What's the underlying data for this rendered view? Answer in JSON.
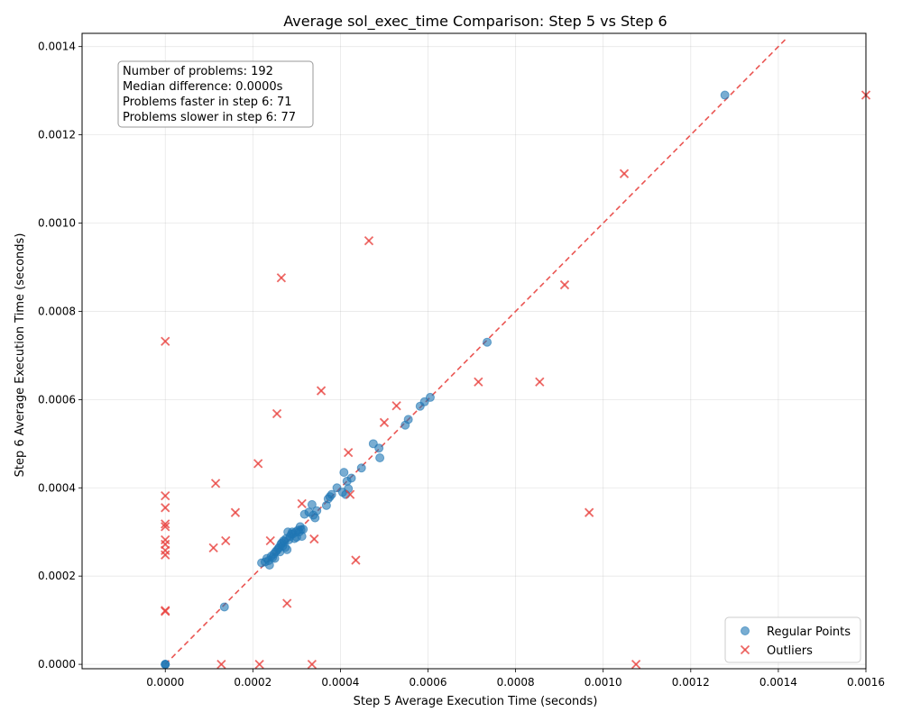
{
  "chart_data": {
    "type": "scatter",
    "title": "Average sol_exec_time Comparison: Step 5 vs Step 6",
    "xlabel": "Step 5 Average Execution Time (seconds)",
    "ylabel": "Step 6 Average Execution Time (seconds)",
    "xlim": [
      -0.00019,
      0.0016
    ],
    "ylim": [
      -1e-05,
      0.00143
    ],
    "xticks": [
      0.0,
      0.0002,
      0.0004,
      0.0006,
      0.0008,
      0.001,
      0.0012,
      0.0014,
      0.0016
    ],
    "xtick_labels": [
      "0.0000",
      "0.0002",
      "0.0004",
      "0.0006",
      "0.0008",
      "0.0010",
      "0.0012",
      "0.0014",
      "0.0016"
    ],
    "yticks": [
      0.0,
      0.0002,
      0.0004,
      0.0006,
      0.0008,
      0.001,
      0.0012,
      0.0014
    ],
    "ytick_labels": [
      "0.0000",
      "0.0002",
      "0.0004",
      "0.0006",
      "0.0008",
      "0.0010",
      "0.0012",
      "0.0014"
    ],
    "grid": true,
    "legend_position": "lower-right",
    "diagonal": {
      "x": [
        0.0,
        0.00142
      ],
      "y": [
        0.0,
        0.00142
      ],
      "color": "#e8423f",
      "style": "dashed"
    },
    "stats": [
      "Number of problems: 192",
      "Median difference: 0.0000s",
      "Problems faster in step 6: 71",
      "Problems slower in step 6: 77"
    ],
    "series": [
      {
        "name": "Regular Points",
        "marker": "circle",
        "color": "#1f77b4",
        "points": [
          [
            0.0,
            0.0
          ],
          [
            0.0,
            0.0
          ],
          [
            0.0,
            0.0
          ],
          [
            0.000135,
            0.00013
          ],
          [
            0.00022,
            0.00023
          ],
          [
            0.000228,
            0.000232
          ],
          [
            0.000232,
            0.00024
          ],
          [
            0.000236,
            0.000235
          ],
          [
            0.000238,
            0.000225
          ],
          [
            0.000242,
            0.000245
          ],
          [
            0.000245,
            0.000242
          ],
          [
            0.000248,
            0.00025
          ],
          [
            0.00025,
            0.00024
          ],
          [
            0.000252,
            0.000255
          ],
          [
            0.000255,
            0.000258
          ],
          [
            0.000258,
            0.000262
          ],
          [
            0.00026,
            0.000265
          ],
          [
            0.000262,
            0.000255
          ],
          [
            0.000264,
            0.000272
          ],
          [
            0.000266,
            0.000275
          ],
          [
            0.000268,
            0.000268
          ],
          [
            0.00027,
            0.00028
          ],
          [
            0.000272,
            0.000278
          ],
          [
            0.000274,
            0.000265
          ],
          [
            0.000276,
            0.000285
          ],
          [
            0.000278,
            0.00026
          ],
          [
            0.00028,
            0.0003
          ],
          [
            0.000282,
            0.000282
          ],
          [
            0.000285,
            0.00029
          ],
          [
            0.000288,
            0.000295
          ],
          [
            0.00029,
            0.0003
          ],
          [
            0.000292,
            0.000296
          ],
          [
            0.000295,
            0.000285
          ],
          [
            0.000298,
            0.0003
          ],
          [
            0.0003,
            0.000288
          ],
          [
            0.000303,
            0.000304
          ],
          [
            0.000306,
            0.0003
          ],
          [
            0.000308,
            0.000312
          ],
          [
            0.00031,
            0.000305
          ],
          [
            0.000312,
            0.00029
          ],
          [
            0.000315,
            0.000306
          ],
          [
            0.000318,
            0.00034
          ],
          [
            0.000328,
            0.000345
          ],
          [
            0.000335,
            0.000362
          ],
          [
            0.000338,
            0.000338
          ],
          [
            0.000342,
            0.000332
          ],
          [
            0.000346,
            0.000348
          ],
          [
            0.000368,
            0.00036
          ],
          [
            0.000372,
            0.000375
          ],
          [
            0.000376,
            0.00038
          ],
          [
            0.00038,
            0.000385
          ],
          [
            0.000392,
            0.0004
          ],
          [
            0.000405,
            0.00039
          ],
          [
            0.000408,
            0.000435
          ],
          [
            0.000412,
            0.000385
          ],
          [
            0.000415,
            0.000415
          ],
          [
            0.000418,
            0.000398
          ],
          [
            0.000425,
            0.000422
          ],
          [
            0.000448,
            0.000445
          ],
          [
            0.000475,
            0.0005
          ],
          [
            0.000488,
            0.00049
          ],
          [
            0.00049,
            0.000468
          ],
          [
            0.000548,
            0.000542
          ],
          [
            0.000555,
            0.000555
          ],
          [
            0.000582,
            0.000585
          ],
          [
            0.000592,
            0.000595
          ],
          [
            0.000605,
            0.000605
          ],
          [
            0.000735,
            0.00073
          ],
          [
            0.001278,
            0.00129
          ]
        ]
      },
      {
        "name": "Outliers",
        "marker": "x",
        "color": "#e8423f",
        "points": [
          [
            0.0,
            0.000732
          ],
          [
            0.0,
            0.000382
          ],
          [
            0.0,
            0.000355
          ],
          [
            0.0,
            0.000318
          ],
          [
            0.0,
            0.000312
          ],
          [
            0.0,
            0.000282
          ],
          [
            0.0,
            0.000272
          ],
          [
            0.0,
            0.000258
          ],
          [
            0.0,
            0.000248
          ],
          [
            0.0,
            0.000122
          ],
          [
            0.0,
            0.00012
          ],
          [
            0.00011,
            0.000264
          ],
          [
            0.000115,
            0.00041
          ],
          [
            0.000138,
            0.00028
          ],
          [
            0.00016,
            0.000344
          ],
          [
            0.000128,
            0.0
          ],
          [
            0.000215,
            0.0
          ],
          [
            0.000335,
            0.0
          ],
          [
            0.001075,
            0.0
          ],
          [
            0.000212,
            0.000455
          ],
          [
            0.00024,
            0.00028
          ],
          [
            0.000255,
            0.000568
          ],
          [
            0.000265,
            0.000876
          ],
          [
            0.000278,
            0.000138
          ],
          [
            0.000312,
            0.000364
          ],
          [
            0.00034,
            0.000284
          ],
          [
            0.000356,
            0.00062
          ],
          [
            0.000418,
            0.00048
          ],
          [
            0.000422,
            0.000385
          ],
          [
            0.000435,
            0.000236
          ],
          [
            0.000465,
            0.00096
          ],
          [
            0.0005,
            0.000548
          ],
          [
            0.000528,
            0.000586
          ],
          [
            0.000715,
            0.00064
          ],
          [
            0.000855,
            0.00064
          ],
          [
            0.000912,
            0.00086
          ],
          [
            0.000968,
            0.000344
          ],
          [
            0.001048,
            0.001112
          ],
          [
            0.0016,
            0.00129
          ]
        ]
      }
    ]
  }
}
